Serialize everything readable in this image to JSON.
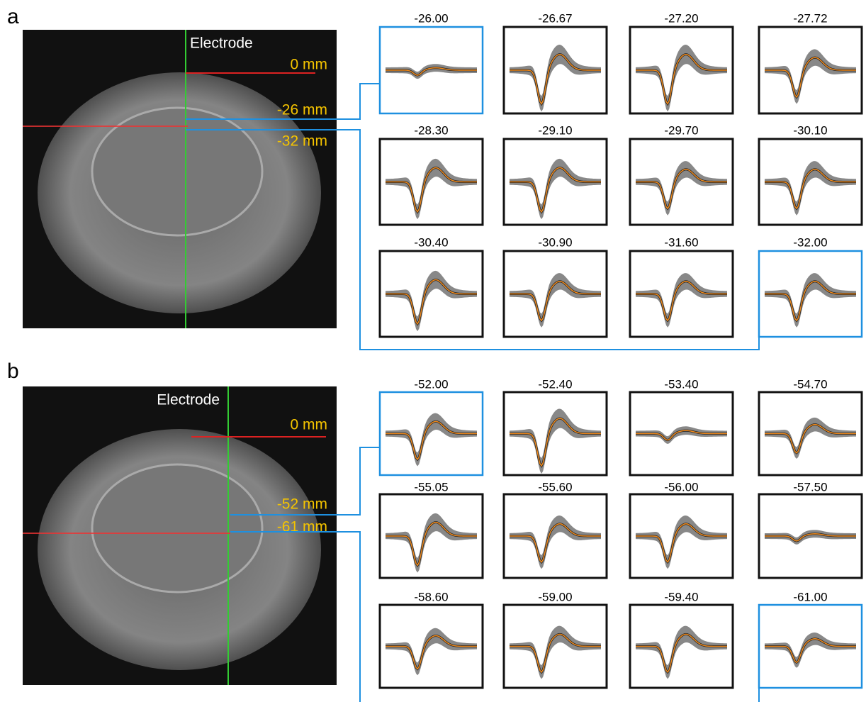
{
  "panels": [
    {
      "label": "a",
      "electrode": "Electrode",
      "markers": [
        "0 mm",
        "-26 mm",
        "-32 mm"
      ],
      "waveforms": [
        "-26.00",
        "-26.67",
        "-27.20",
        "-27.72",
        "-28.30",
        "-29.10",
        "-29.70",
        "-30.10",
        "-30.40",
        "-30.90",
        "-31.60",
        "-32.00"
      ]
    },
    {
      "label": "b",
      "electrode": "Electrode",
      "markers": [
        "0 mm",
        "-52 mm",
        "-61 mm"
      ],
      "waveforms": [
        "-52.00",
        "-52.40",
        "-53.40",
        "-54.70",
        "-55.05",
        "-55.60",
        "-56.00",
        "-57.50",
        "-58.60",
        "-59.00",
        "-59.40",
        "-61.00"
      ]
    }
  ]
}
